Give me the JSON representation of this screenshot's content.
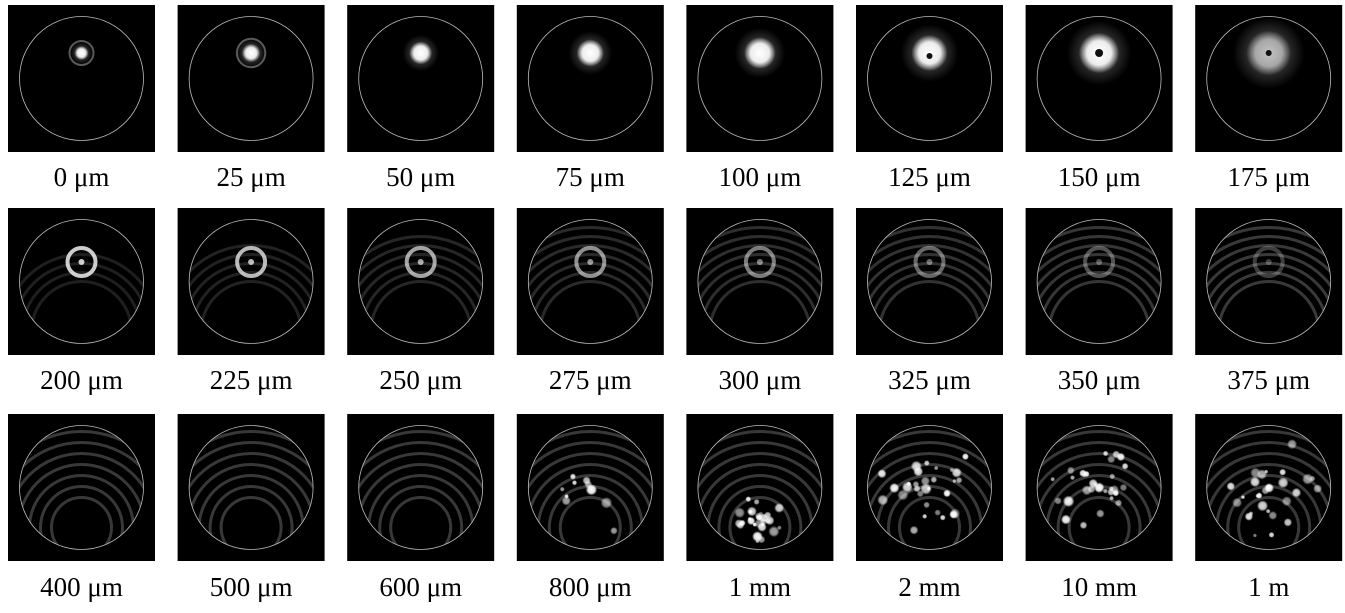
{
  "figure": {
    "panels": [
      {
        "label": "0 μm"
      },
      {
        "label": "25 μm"
      },
      {
        "label": "50 μm"
      },
      {
        "label": "75 μm"
      },
      {
        "label": "100 μm"
      },
      {
        "label": "125 μm"
      },
      {
        "label": "150 μm"
      },
      {
        "label": "175 μm"
      },
      {
        "label": "200 μm"
      },
      {
        "label": "225 μm"
      },
      {
        "label": "250 μm"
      },
      {
        "label": "275 μm"
      },
      {
        "label": "300 μm"
      },
      {
        "label": "325 μm"
      },
      {
        "label": "350 μm"
      },
      {
        "label": "375 μm"
      },
      {
        "label": "400 μm"
      },
      {
        "label": "500 μm"
      },
      {
        "label": "600 μm"
      },
      {
        "label": "800 μm"
      },
      {
        "label": "1 mm"
      },
      {
        "label": "2 mm"
      },
      {
        "label": "10 mm"
      },
      {
        "label": "1 m"
      }
    ]
  }
}
